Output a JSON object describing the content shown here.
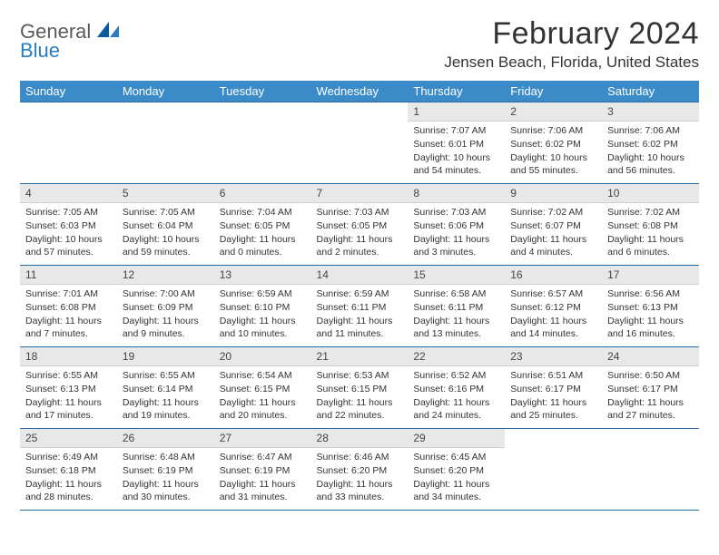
{
  "brand": {
    "general": "General",
    "blue": "Blue"
  },
  "title": "February 2024",
  "location": "Jensen Beach, Florida, United States",
  "dayHeaders": [
    "Sunday",
    "Monday",
    "Tuesday",
    "Wednesday",
    "Thursday",
    "Friday",
    "Saturday"
  ],
  "colors": {
    "headerBg": "#3b8bc9",
    "borderBlue": "#2a6ca8",
    "dayBg": "#e8e8e8"
  },
  "weeks": [
    [
      null,
      null,
      null,
      null,
      {
        "n": "1",
        "sr": "Sunrise: 7:07 AM",
        "ss": "Sunset: 6:01 PM",
        "d1": "Daylight: 10 hours",
        "d2": "and 54 minutes."
      },
      {
        "n": "2",
        "sr": "Sunrise: 7:06 AM",
        "ss": "Sunset: 6:02 PM",
        "d1": "Daylight: 10 hours",
        "d2": "and 55 minutes."
      },
      {
        "n": "3",
        "sr": "Sunrise: 7:06 AM",
        "ss": "Sunset: 6:02 PM",
        "d1": "Daylight: 10 hours",
        "d2": "and 56 minutes."
      }
    ],
    [
      {
        "n": "4",
        "sr": "Sunrise: 7:05 AM",
        "ss": "Sunset: 6:03 PM",
        "d1": "Daylight: 10 hours",
        "d2": "and 57 minutes."
      },
      {
        "n": "5",
        "sr": "Sunrise: 7:05 AM",
        "ss": "Sunset: 6:04 PM",
        "d1": "Daylight: 10 hours",
        "d2": "and 59 minutes."
      },
      {
        "n": "6",
        "sr": "Sunrise: 7:04 AM",
        "ss": "Sunset: 6:05 PM",
        "d1": "Daylight: 11 hours",
        "d2": "and 0 minutes."
      },
      {
        "n": "7",
        "sr": "Sunrise: 7:03 AM",
        "ss": "Sunset: 6:05 PM",
        "d1": "Daylight: 11 hours",
        "d2": "and 2 minutes."
      },
      {
        "n": "8",
        "sr": "Sunrise: 7:03 AM",
        "ss": "Sunset: 6:06 PM",
        "d1": "Daylight: 11 hours",
        "d2": "and 3 minutes."
      },
      {
        "n": "9",
        "sr": "Sunrise: 7:02 AM",
        "ss": "Sunset: 6:07 PM",
        "d1": "Daylight: 11 hours",
        "d2": "and 4 minutes."
      },
      {
        "n": "10",
        "sr": "Sunrise: 7:02 AM",
        "ss": "Sunset: 6:08 PM",
        "d1": "Daylight: 11 hours",
        "d2": "and 6 minutes."
      }
    ],
    [
      {
        "n": "11",
        "sr": "Sunrise: 7:01 AM",
        "ss": "Sunset: 6:08 PM",
        "d1": "Daylight: 11 hours",
        "d2": "and 7 minutes."
      },
      {
        "n": "12",
        "sr": "Sunrise: 7:00 AM",
        "ss": "Sunset: 6:09 PM",
        "d1": "Daylight: 11 hours",
        "d2": "and 9 minutes."
      },
      {
        "n": "13",
        "sr": "Sunrise: 6:59 AM",
        "ss": "Sunset: 6:10 PM",
        "d1": "Daylight: 11 hours",
        "d2": "and 10 minutes."
      },
      {
        "n": "14",
        "sr": "Sunrise: 6:59 AM",
        "ss": "Sunset: 6:11 PM",
        "d1": "Daylight: 11 hours",
        "d2": "and 11 minutes."
      },
      {
        "n": "15",
        "sr": "Sunrise: 6:58 AM",
        "ss": "Sunset: 6:11 PM",
        "d1": "Daylight: 11 hours",
        "d2": "and 13 minutes."
      },
      {
        "n": "16",
        "sr": "Sunrise: 6:57 AM",
        "ss": "Sunset: 6:12 PM",
        "d1": "Daylight: 11 hours",
        "d2": "and 14 minutes."
      },
      {
        "n": "17",
        "sr": "Sunrise: 6:56 AM",
        "ss": "Sunset: 6:13 PM",
        "d1": "Daylight: 11 hours",
        "d2": "and 16 minutes."
      }
    ],
    [
      {
        "n": "18",
        "sr": "Sunrise: 6:55 AM",
        "ss": "Sunset: 6:13 PM",
        "d1": "Daylight: 11 hours",
        "d2": "and 17 minutes."
      },
      {
        "n": "19",
        "sr": "Sunrise: 6:55 AM",
        "ss": "Sunset: 6:14 PM",
        "d1": "Daylight: 11 hours",
        "d2": "and 19 minutes."
      },
      {
        "n": "20",
        "sr": "Sunrise: 6:54 AM",
        "ss": "Sunset: 6:15 PM",
        "d1": "Daylight: 11 hours",
        "d2": "and 20 minutes."
      },
      {
        "n": "21",
        "sr": "Sunrise: 6:53 AM",
        "ss": "Sunset: 6:15 PM",
        "d1": "Daylight: 11 hours",
        "d2": "and 22 minutes."
      },
      {
        "n": "22",
        "sr": "Sunrise: 6:52 AM",
        "ss": "Sunset: 6:16 PM",
        "d1": "Daylight: 11 hours",
        "d2": "and 24 minutes."
      },
      {
        "n": "23",
        "sr": "Sunrise: 6:51 AM",
        "ss": "Sunset: 6:17 PM",
        "d1": "Daylight: 11 hours",
        "d2": "and 25 minutes."
      },
      {
        "n": "24",
        "sr": "Sunrise: 6:50 AM",
        "ss": "Sunset: 6:17 PM",
        "d1": "Daylight: 11 hours",
        "d2": "and 27 minutes."
      }
    ],
    [
      {
        "n": "25",
        "sr": "Sunrise: 6:49 AM",
        "ss": "Sunset: 6:18 PM",
        "d1": "Daylight: 11 hours",
        "d2": "and 28 minutes."
      },
      {
        "n": "26",
        "sr": "Sunrise: 6:48 AM",
        "ss": "Sunset: 6:19 PM",
        "d1": "Daylight: 11 hours",
        "d2": "and 30 minutes."
      },
      {
        "n": "27",
        "sr": "Sunrise: 6:47 AM",
        "ss": "Sunset: 6:19 PM",
        "d1": "Daylight: 11 hours",
        "d2": "and 31 minutes."
      },
      {
        "n": "28",
        "sr": "Sunrise: 6:46 AM",
        "ss": "Sunset: 6:20 PM",
        "d1": "Daylight: 11 hours",
        "d2": "and 33 minutes."
      },
      {
        "n": "29",
        "sr": "Sunrise: 6:45 AM",
        "ss": "Sunset: 6:20 PM",
        "d1": "Daylight: 11 hours",
        "d2": "and 34 minutes."
      },
      null,
      null
    ]
  ]
}
